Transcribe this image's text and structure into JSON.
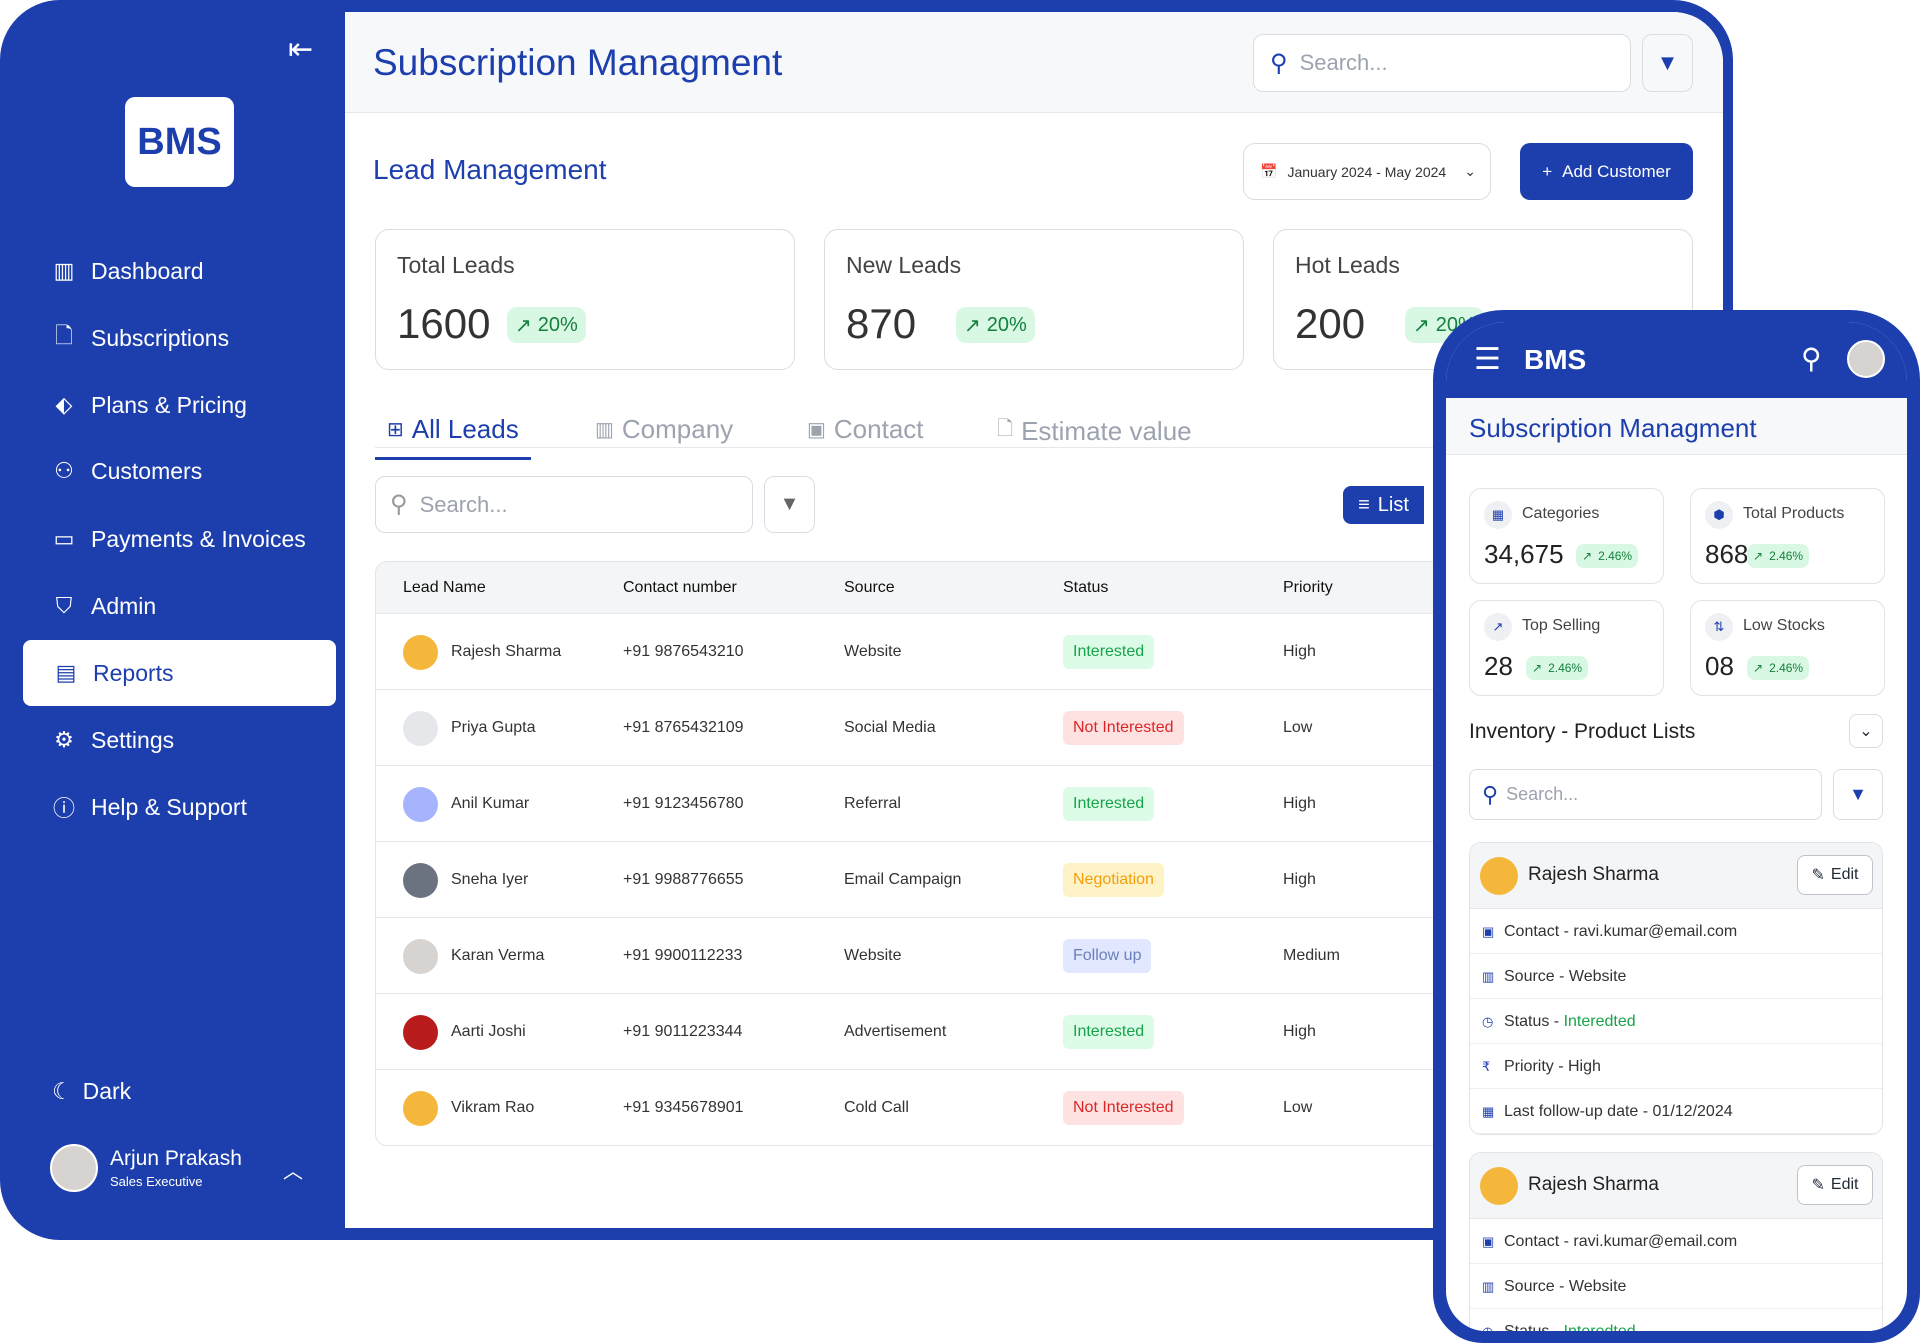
{
  "brand": {
    "logo": "BMS",
    "color": "#1d3fad"
  },
  "sidebar": {
    "items": [
      {
        "label": "Dashboard",
        "icon": "dashboard-icon"
      },
      {
        "label": "Subscriptions",
        "icon": "document-icon"
      },
      {
        "label": "Plans & Pricing",
        "icon": "tag-icon"
      },
      {
        "label": "Customers",
        "icon": "users-icon"
      },
      {
        "label": "Payments & Invoices",
        "icon": "card-icon"
      },
      {
        "label": "Admin",
        "icon": "shield-icon"
      },
      {
        "label": "Reports",
        "icon": "report-icon",
        "active": true
      },
      {
        "label": "Settings",
        "icon": "settings-icon"
      },
      {
        "label": "Help & Support",
        "icon": "info-icon"
      }
    ],
    "dark_label": "Dark",
    "user": {
      "name": "Arjun Prakash",
      "role": "Sales Executive"
    }
  },
  "header": {
    "title": "Subscription Managment",
    "search_placeholder": "Search..."
  },
  "section": {
    "title": "Lead Management",
    "date_range": "January 2024 - May 2024",
    "add_button": "Add Customer"
  },
  "stats": [
    {
      "label": "Total Leads",
      "value": "1600",
      "change": "20%"
    },
    {
      "label": "New Leads",
      "value": "870",
      "change": "20%"
    },
    {
      "label": "Hot Leads",
      "value": "200",
      "change": "20%"
    }
  ],
  "tabs": [
    {
      "label": "All Leads",
      "active": true
    },
    {
      "label": "Company"
    },
    {
      "label": "Contact"
    },
    {
      "label": "Estimate value"
    }
  ],
  "table_search_placeholder": "Search...",
  "view_toggle": "List",
  "table": {
    "columns": [
      "Lead Name",
      "Contact number",
      "Source",
      "Status",
      "Priority"
    ],
    "rows": [
      {
        "name": "Rajesh Sharma",
        "phone": "+91 9876543210",
        "source": "Website",
        "status": "Interested",
        "priority": "High",
        "avatar": "#f5b73b"
      },
      {
        "name": "Priya Gupta",
        "phone": "+91 8765432109",
        "source": "Social Media",
        "status": "Not Interested",
        "priority": "Low",
        "avatar": "#e5e7eb"
      },
      {
        "name": "Anil Kumar",
        "phone": "+91 9123456780",
        "source": "Referral",
        "status": "Interested",
        "priority": "High",
        "avatar": "#a5b4fc"
      },
      {
        "name": "Sneha Iyer",
        "phone": "+91 9988776655",
        "source": "Email Campaign",
        "status": "Negotiation",
        "priority": "High",
        "avatar": "#6b7280"
      },
      {
        "name": "Karan Verma",
        "phone": "+91 9900112233",
        "source": "Website",
        "status": "Follow up",
        "priority": "Medium",
        "avatar": "#d6d3d1"
      },
      {
        "name": "Aarti Joshi",
        "phone": "+91 9011223344",
        "source": "Advertisement",
        "status": "Interested",
        "priority": "High",
        "avatar": "#b91c1c"
      },
      {
        "name": "Vikram Rao",
        "phone": "+91 9345678901",
        "source": "Cold Call",
        "status": "Not Interested",
        "priority": "Low",
        "avatar": "#f5b73b"
      }
    ]
  },
  "status_colors": {
    "Interested": [
      "#dcfce7",
      "#16a34a"
    ],
    "Not Interested": [
      "#fee2e2",
      "#dc2626"
    ],
    "Negotiation": [
      "#fef3c7",
      "#f59e0b"
    ],
    "Follow up": [
      "#e0e7ff",
      "#6b7fb8"
    ]
  },
  "mobile": {
    "brand": "BMS",
    "title": "Subscription Managment",
    "stats": [
      {
        "label": "Categories",
        "value": "34,675",
        "change": "2.46%",
        "icon": "grid-icon"
      },
      {
        "label": "Total Products",
        "value": "868",
        "change": "2.46%",
        "icon": "box-icon"
      },
      {
        "label": "Top Selling",
        "value": "28",
        "change": "2.46%",
        "icon": "trend-icon"
      },
      {
        "label": "Low Stocks",
        "value": "08",
        "change": "2.46%",
        "icon": "sort-icon"
      }
    ],
    "list_title": "Inventory - Product Lists",
    "search_placeholder": "Search...",
    "cards": [
      {
        "name": "Rajesh Sharma",
        "edit": "Edit",
        "rows": [
          {
            "label": "Contact - ",
            "value": "ravi.kumar@email.com"
          },
          {
            "label": "Source - ",
            "value": "Website"
          },
          {
            "label": "Status - ",
            "value": "Interedted",
            "green": true
          },
          {
            "label": "Priority - ",
            "value": "High"
          },
          {
            "label": "Last follow-up date - ",
            "value": "01/12/2024"
          }
        ]
      },
      {
        "name": "Rajesh Sharma",
        "edit": "Edit",
        "rows": [
          {
            "label": "Contact - ",
            "value": "ravi.kumar@email.com"
          },
          {
            "label": "Source - ",
            "value": "Website"
          },
          {
            "label": "Status - ",
            "value": "Interedted",
            "green": true
          }
        ]
      }
    ]
  }
}
